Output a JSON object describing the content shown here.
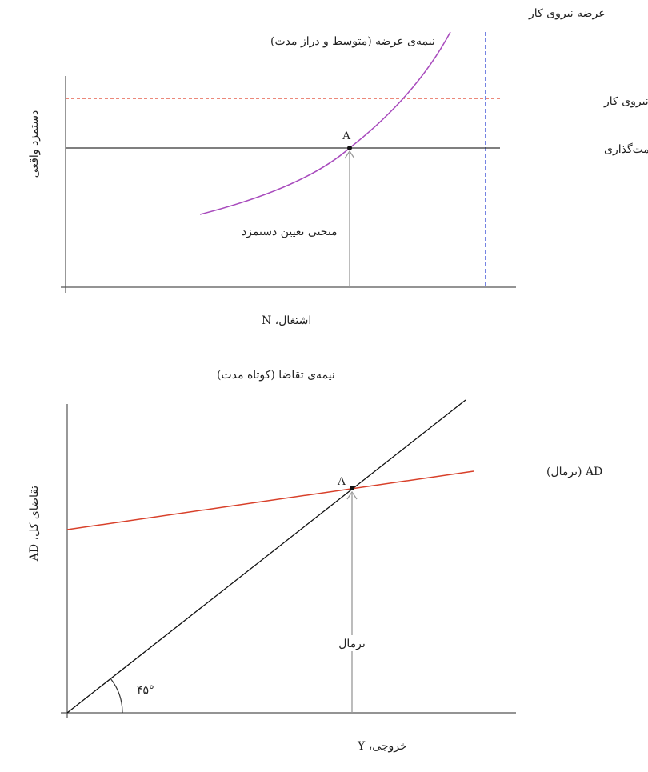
{
  "top_panel": {
    "title": "نیمه‌ی عرضه (متوسط و دراز مدت)",
    "y_axis_label": "دستمزد واقعی",
    "x_axis_label": "اشتغال، N",
    "labor_supply_label": "عرضه نیروی کار",
    "productivity_label": "بهره‌وری نیروی کار",
    "price_setting_label": "منحنی قیمت‌گذاری",
    "wage_setting_label": "منحنی تعیین دستمزد",
    "point_label": "A"
  },
  "bottom_panel": {
    "title": "نیمه‌ی تقاضا (کوتاه مدت)",
    "y_axis_label": "تقاضای کل، AD",
    "x_axis_label": "خروجی، Y",
    "ad_label": "AD (نرمال)",
    "normal_label": "نرمال",
    "angle_label": "۴۵°",
    "point_label": "A"
  },
  "colors": {
    "axis": "#555555",
    "price_setting": "#333333",
    "productivity": "#e0402a",
    "labor_supply": "#3b4fd6",
    "wage_setting": "#a84bbd",
    "ad_curve": "#d8402a",
    "diagonal": "#111111",
    "arrow": "#999999"
  }
}
